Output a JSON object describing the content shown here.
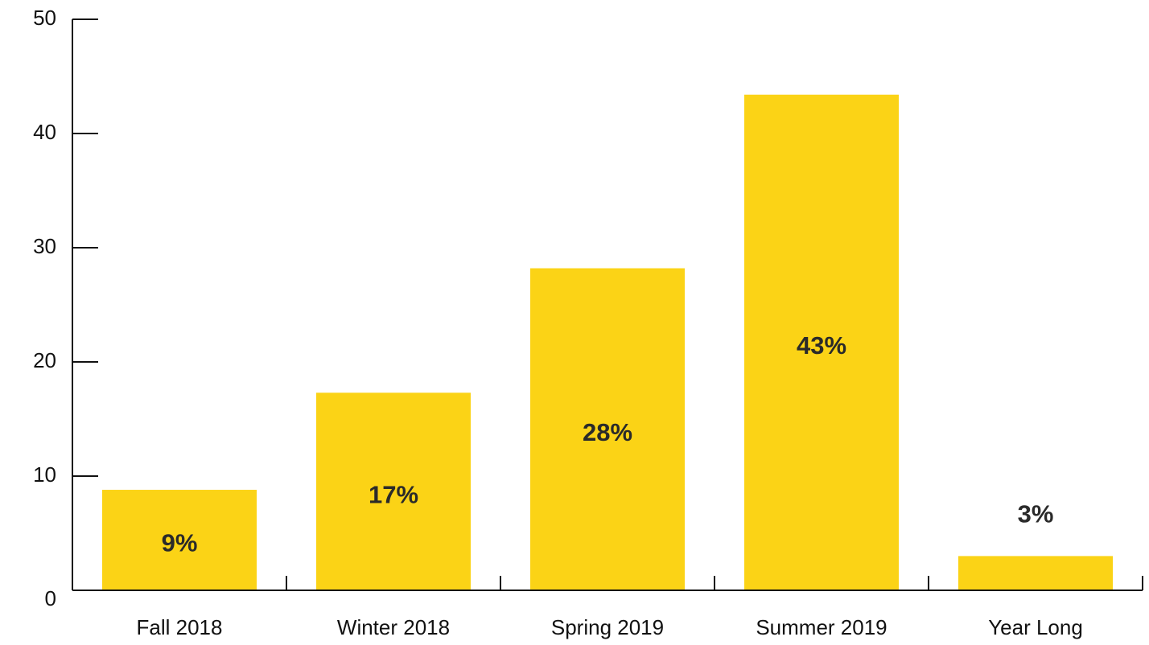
{
  "chart_data": {
    "type": "bar",
    "categories": [
      "Fall 2018",
      "Winter 2018",
      "Spring 2019",
      "Summer 2019",
      "Year Long"
    ],
    "values": [
      8.8,
      17.3,
      28.2,
      43.4,
      3.0
    ],
    "value_labels": [
      "9%",
      "17%",
      "28%",
      "43%",
      "3%"
    ],
    "color": "#fbd316",
    "ylim": [
      0,
      50
    ],
    "yticks": [
      0,
      10,
      20,
      30,
      40,
      50
    ]
  }
}
